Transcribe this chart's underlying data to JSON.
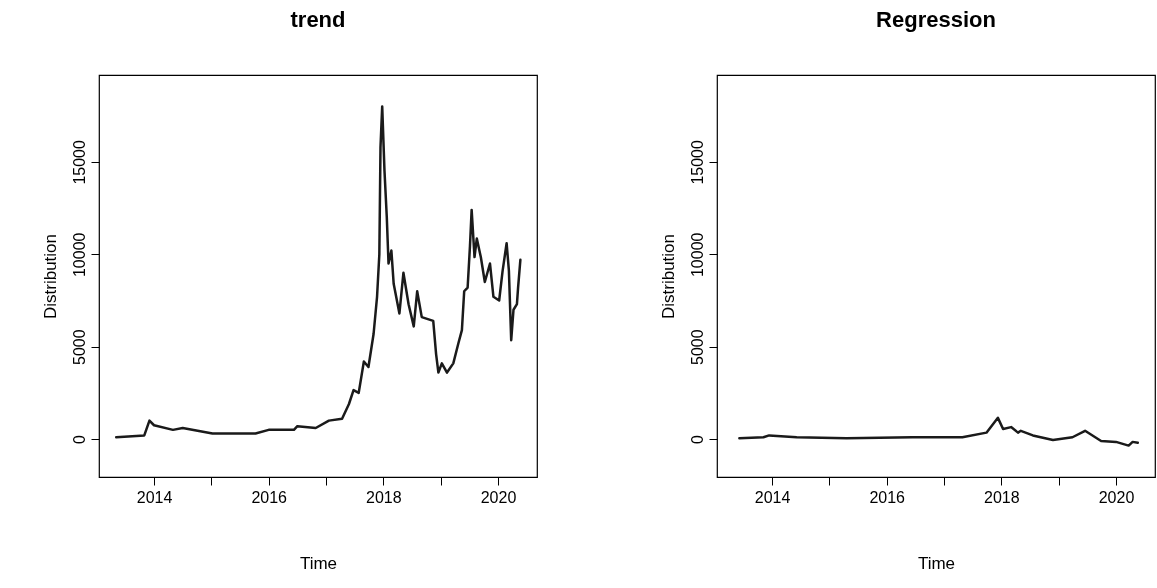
{
  "chart_data": [
    {
      "type": "line",
      "title": "trend",
      "xlabel": "Time",
      "ylabel": "Distribution",
      "xlim": [
        2013.04,
        2020.68
      ],
      "xticks": [
        2014,
        {
          "value": 2015,
          "label": null
        },
        2016,
        {
          "value": 2017,
          "label": null
        },
        2018,
        {
          "value": 2019,
          "label": null
        },
        2020
      ],
      "ylim": [
        -2050,
        19700
      ],
      "yticks": [
        0,
        5000,
        10000,
        15000
      ],
      "grid": false,
      "series": [
        {
          "color": "#1a1a1a",
          "x": [
            2013.34,
            2013.83,
            2013.92,
            2014.0,
            2014.33,
            2014.5,
            2015.02,
            2015.77,
            2016.0,
            2016.44,
            2016.5,
            2016.82,
            2017.05,
            2017.28,
            2017.4,
            2017.48,
            2017.57,
            2017.66,
            2017.74,
            2017.83,
            2017.89,
            2017.93,
            2017.95,
            2017.98,
            2018.02,
            2018.06,
            2018.09,
            2018.14,
            2018.18,
            2018.28,
            2018.35,
            2018.44,
            2018.53,
            2018.59,
            2018.67,
            2018.87,
            2018.92,
            2018.96,
            2019.02,
            2019.11,
            2019.22,
            2019.31,
            2019.37,
            2019.41,
            2019.47,
            2019.51,
            2019.54,
            2019.59,
            2019.63,
            2019.7,
            2019.77,
            2019.86,
            2019.92,
            2020.02,
            2020.08,
            2020.15,
            2020.19,
            2020.23,
            2020.27,
            2020.33,
            2020.35,
            2020.39
          ],
          "values": [
            100,
            200,
            1000,
            750,
            500,
            600,
            300,
            300,
            500,
            500,
            700,
            600,
            1000,
            1100,
            1900,
            2650,
            2500,
            4200,
            3900,
            5700,
            7700,
            10000,
            15800,
            18000,
            14500,
            12000,
            9500,
            10200,
            8400,
            6800,
            9000,
            7300,
            6100,
            8000,
            6600,
            6400,
            4600,
            3600,
            4100,
            3600,
            4100,
            5200,
            5900,
            8000,
            8200,
            10400,
            12400,
            9850,
            10850,
            9850,
            8500,
            9500,
            7700,
            7500,
            9100,
            10600,
            9100,
            5350,
            7000,
            7300,
            8200,
            9700
          ]
        }
      ]
    },
    {
      "type": "line",
      "title": "Regression",
      "xlabel": "Time",
      "ylabel": "Distribution",
      "xlim": [
        2013.04,
        2020.68
      ],
      "xticks": [
        2014,
        {
          "value": 2015,
          "label": null
        },
        2016,
        {
          "value": 2017,
          "label": null
        },
        2018,
        {
          "value": 2019,
          "label": null
        },
        2020
      ],
      "ylim": [
        -2050,
        19700
      ],
      "yticks": [
        0,
        5000,
        10000,
        15000
      ],
      "grid": false,
      "series": [
        {
          "color": "#1a1a1a",
          "x": [
            2013.43,
            2013.85,
            2013.95,
            2014.43,
            2015.3,
            2016.45,
            2017.32,
            2017.74,
            2017.94,
            2018.03,
            2018.17,
            2018.29,
            2018.34,
            2018.55,
            2018.9,
            2019.24,
            2019.46,
            2019.74,
            2020.0,
            2020.22,
            2020.29,
            2020.38
          ],
          "values": [
            50,
            100,
            200,
            100,
            50,
            100,
            100,
            350,
            1150,
            550,
            650,
            350,
            450,
            200,
            -50,
            100,
            450,
            -100,
            -150,
            -350,
            -150,
            -200
          ]
        }
      ]
    }
  ]
}
